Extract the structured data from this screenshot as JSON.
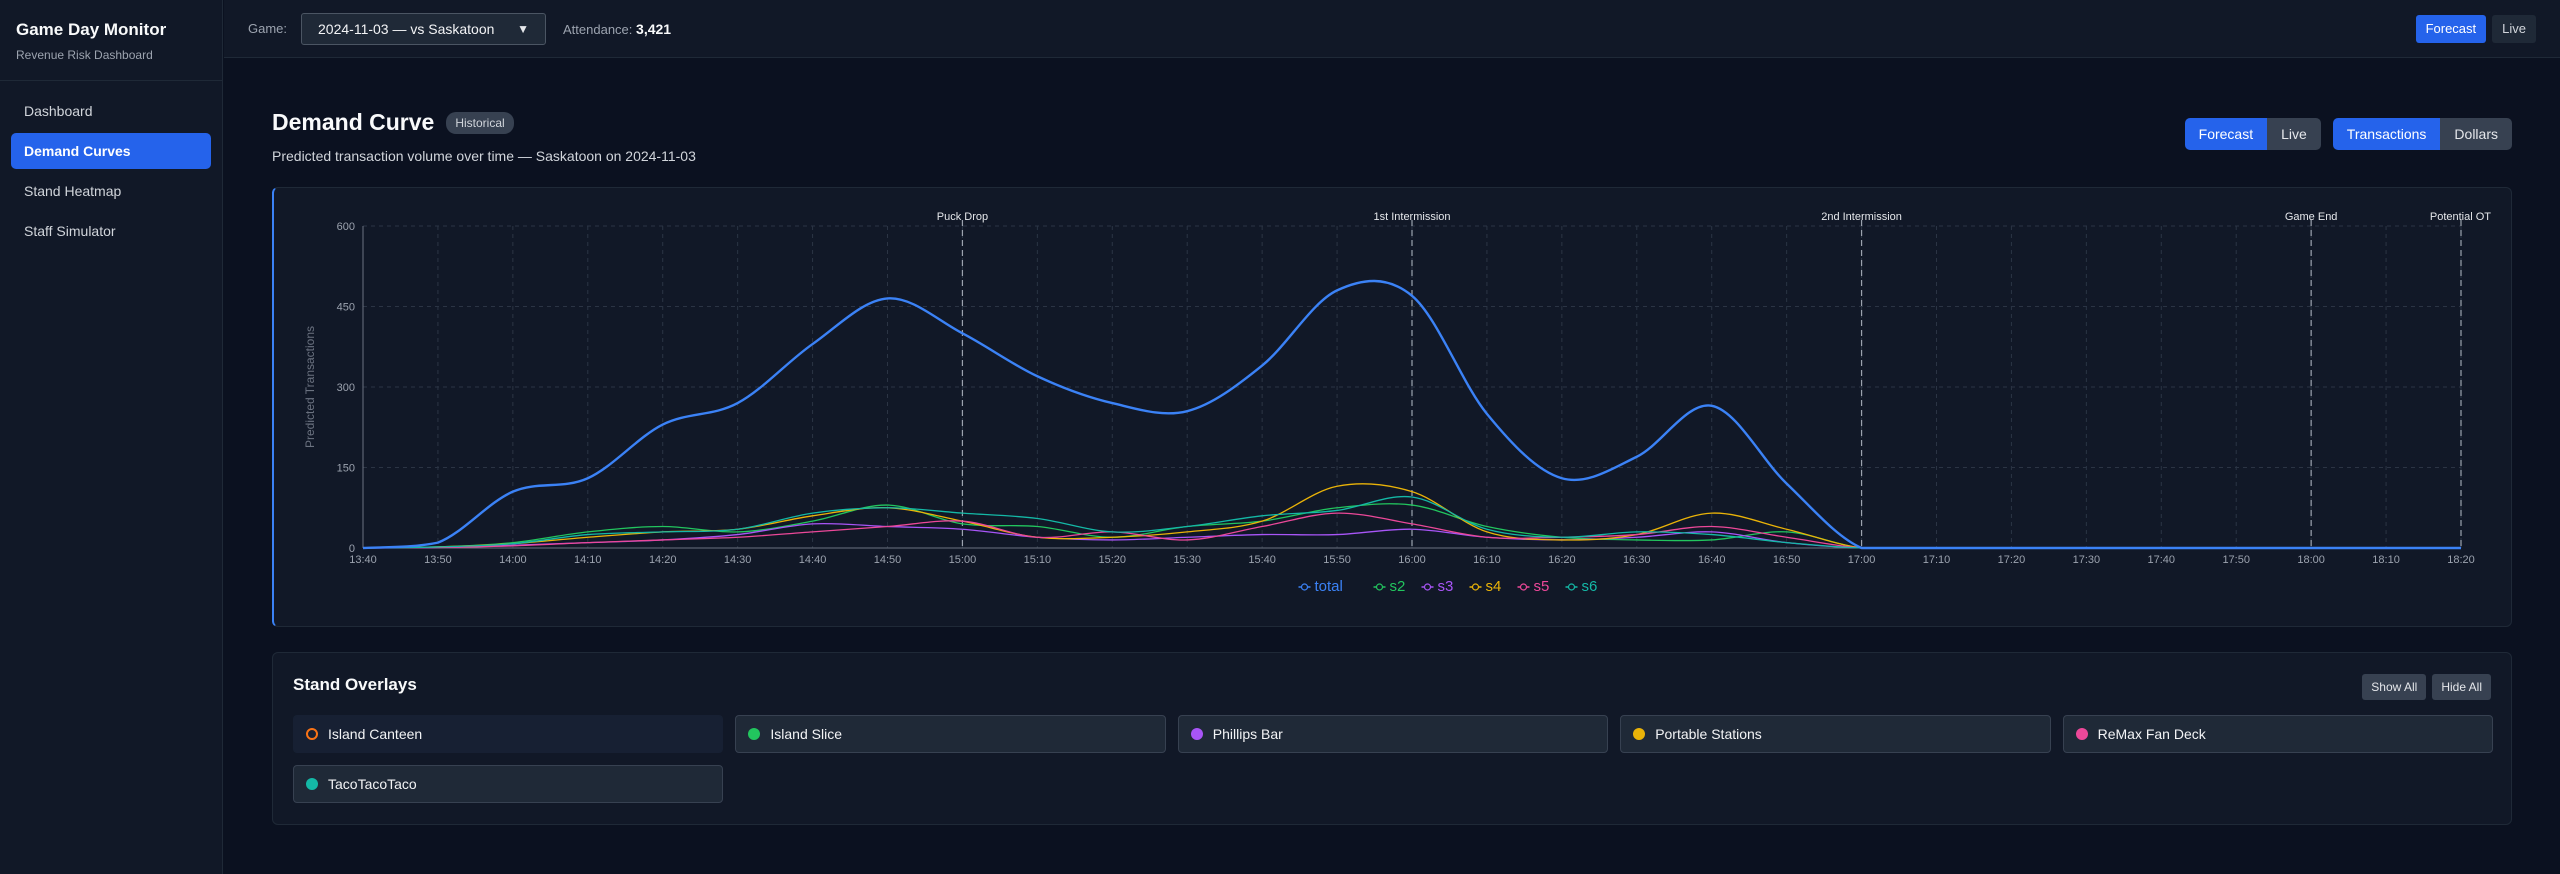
{
  "app": {
    "title": "Game Day Monitor",
    "subtitle": "Revenue Risk Dashboard"
  },
  "sidebar": {
    "items": [
      {
        "label": "Dashboard",
        "active": false
      },
      {
        "label": "Demand Curves",
        "active": true
      },
      {
        "label": "Stand Heatmap",
        "active": false
      },
      {
        "label": "Staff Simulator",
        "active": false
      }
    ]
  },
  "topbar": {
    "game_label": "Game:",
    "game_value": "2024-11-03 — vs Saskatoon",
    "attendance_label": "Attendance:",
    "attendance_value": "3,421",
    "mode_forecast": "Forecast",
    "mode_live": "Live"
  },
  "page": {
    "title": "Demand Curve",
    "badge": "Historical",
    "subtitle": "Predicted transaction volume over time — Saskatoon on 2024-11-03",
    "toggle_forecast": "Forecast",
    "toggle_live": "Live",
    "toggle_transactions": "Transactions",
    "toggle_dollars": "Dollars"
  },
  "chart_data": {
    "type": "line",
    "ylabel": "Predicted Transactions",
    "xlabel": "",
    "ylim": [
      0,
      600
    ],
    "yticks": [
      0,
      150,
      300,
      450,
      600
    ],
    "x": [
      "13:40",
      "13:50",
      "14:00",
      "14:10",
      "14:20",
      "14:30",
      "14:40",
      "14:50",
      "15:00",
      "15:10",
      "15:20",
      "15:30",
      "15:40",
      "15:50",
      "16:00",
      "16:10",
      "16:20",
      "16:30",
      "16:40",
      "16:50",
      "17:00",
      "17:10",
      "17:20",
      "17:30",
      "17:40",
      "17:50",
      "18:00",
      "18:10",
      "18:20"
    ],
    "markers": [
      {
        "label": "Puck Drop",
        "x": "15:00"
      },
      {
        "label": "1st Intermission",
        "x": "16:00"
      },
      {
        "label": "2nd Intermission",
        "x": "17:00"
      },
      {
        "label": "Game End",
        "x": "18:00"
      },
      {
        "label": "Potential OT",
        "x": "18:20"
      }
    ],
    "series": [
      {
        "name": "total",
        "color": "#3b82f6",
        "width": 2.4,
        "values": [
          0,
          10,
          105,
          130,
          230,
          270,
          380,
          465,
          400,
          320,
          270,
          255,
          340,
          480,
          470,
          250,
          130,
          170,
          265,
          120,
          0,
          0,
          0,
          0,
          0,
          0,
          0,
          0,
          0
        ]
      },
      {
        "name": "s2",
        "color": "#22c55e",
        "width": 1.3,
        "values": [
          0,
          2,
          10,
          30,
          40,
          30,
          50,
          80,
          45,
          40,
          20,
          40,
          50,
          75,
          80,
          40,
          20,
          15,
          15,
          30,
          0,
          0,
          0,
          0,
          0,
          0,
          0,
          0,
          0
        ]
      },
      {
        "name": "s3",
        "color": "#a855f7",
        "width": 1.3,
        "values": [
          0,
          1,
          5,
          10,
          15,
          25,
          45,
          40,
          35,
          20,
          15,
          20,
          25,
          25,
          35,
          20,
          15,
          20,
          30,
          10,
          0,
          0,
          0,
          0,
          0,
          0,
          0,
          0,
          0
        ]
      },
      {
        "name": "s4",
        "color": "#eab308",
        "width": 1.3,
        "values": [
          0,
          2,
          8,
          20,
          30,
          35,
          60,
          75,
          50,
          20,
          20,
          30,
          50,
          115,
          105,
          30,
          15,
          25,
          65,
          35,
          0,
          0,
          0,
          0,
          0,
          0,
          0,
          0,
          0
        ]
      },
      {
        "name": "s5",
        "color": "#ec4899",
        "width": 1.3,
        "values": [
          0,
          1,
          4,
          10,
          15,
          20,
          30,
          40,
          50,
          20,
          30,
          15,
          40,
          65,
          45,
          20,
          20,
          25,
          40,
          20,
          0,
          0,
          0,
          0,
          0,
          0,
          0,
          0,
          0
        ]
      },
      {
        "name": "s6",
        "color": "#14b8a6",
        "width": 1.3,
        "values": [
          0,
          2,
          8,
          25,
          30,
          35,
          65,
          75,
          65,
          55,
          30,
          40,
          60,
          70,
          95,
          35,
          20,
          30,
          25,
          10,
          0,
          0,
          0,
          0,
          0,
          0,
          0,
          0,
          0
        ]
      }
    ]
  },
  "overlays": {
    "title": "Stand Overlays",
    "show_all": "Show All",
    "hide_all": "Hide All",
    "stands": [
      {
        "name": "Island Canteen",
        "color": "#f97316",
        "enabled": false
      },
      {
        "name": "Island Slice",
        "color": "#22c55e",
        "enabled": true
      },
      {
        "name": "Phillips Bar",
        "color": "#a855f7",
        "enabled": true
      },
      {
        "name": "Portable Stations",
        "color": "#eab308",
        "enabled": true
      },
      {
        "name": "ReMax Fan Deck",
        "color": "#ec4899",
        "enabled": true
      },
      {
        "name": "TacoTacoTaco",
        "color": "#14b8a6",
        "enabled": true
      }
    ]
  }
}
